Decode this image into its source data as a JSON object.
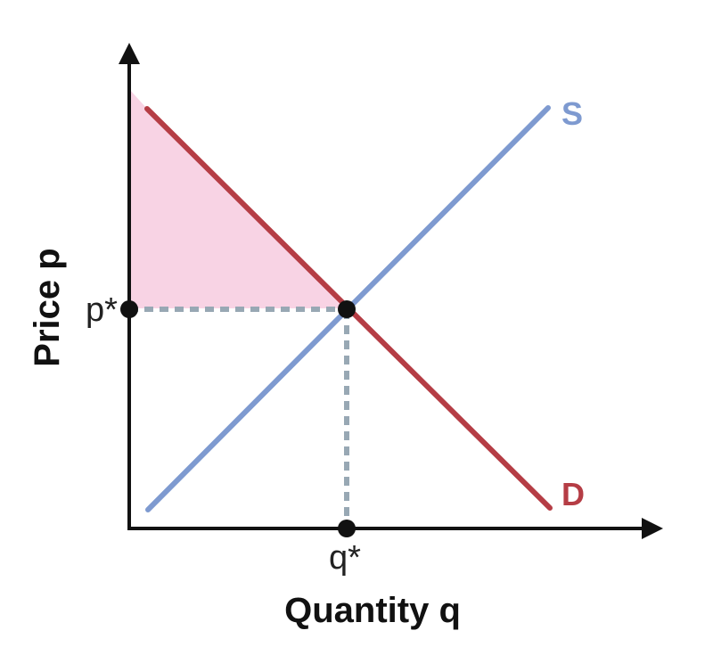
{
  "diagram": {
    "type": "supply-demand",
    "x_axis_label": "Quantity q",
    "y_axis_label": "Price p",
    "equilibrium_quantity_label": "q*",
    "equilibrium_price_label": "p*",
    "supply_label": "S",
    "demand_label": "D",
    "colors": {
      "supply": "#7e9ad0",
      "demand": "#b53d45",
      "consumer_surplus": "#f8d3e4",
      "guide_lines": "#98a8b4",
      "axis": "#111111"
    }
  }
}
